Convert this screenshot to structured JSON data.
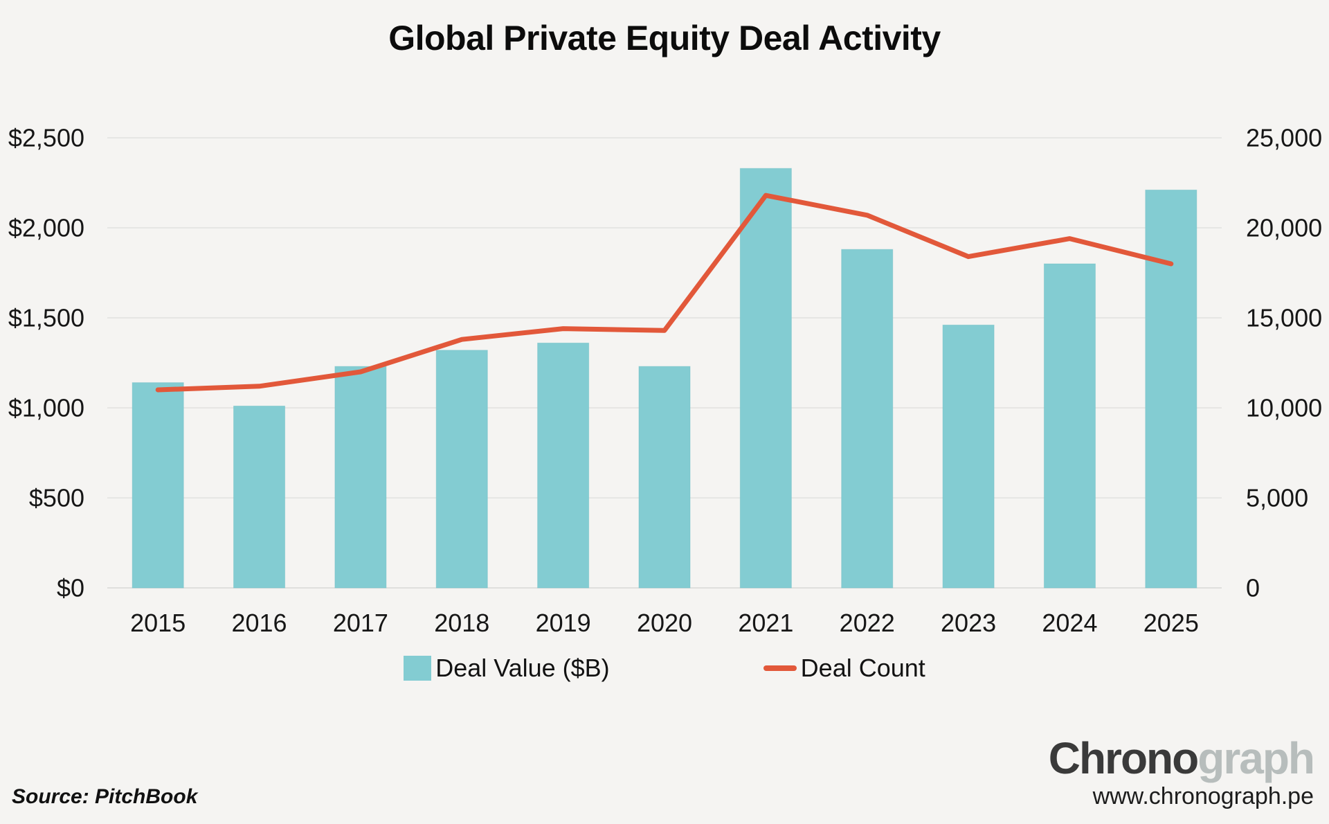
{
  "title": "Global Private Equity Deal Activity",
  "source_note": "Source: PitchBook",
  "logo": {
    "wordmark_dark": "Chrono",
    "wordmark_light": "graph",
    "url": "www.chronograph.pe"
  },
  "legend": [
    {
      "label": "Deal Value ($B)",
      "swatch": "bar",
      "color": "#83ccd2"
    },
    {
      "label": "Deal Count",
      "swatch": "line",
      "color": "#e2583a"
    }
  ],
  "colors": {
    "background": "#f5f4f2",
    "bar_fill": "#83ccd2",
    "bar_edge": "#6dbcc3",
    "line_stroke": "#e2583a",
    "gridline": "#e2e2e0",
    "baseline": "#d8d8d6",
    "text": "#161616"
  },
  "chart_data": {
    "type": "combo",
    "title": "Global Private Equity Deal Activity",
    "categories": [
      "2015",
      "2016",
      "2017",
      "2018",
      "2019",
      "2020",
      "2021",
      "2022",
      "2023",
      "2024",
      "2025"
    ],
    "series": [
      {
        "name": "Deal Value ($B)",
        "type": "bar",
        "axis": "left",
        "color": "#83ccd2",
        "values": [
          1140,
          1010,
          1230,
          1320,
          1360,
          1230,
          2330,
          1880,
          1460,
          1800,
          2210
        ]
      },
      {
        "name": "Deal Count",
        "type": "line",
        "axis": "right",
        "color": "#e2583a",
        "values": [
          11000,
          11200,
          12000,
          13800,
          14400,
          14300,
          21800,
          20700,
          18400,
          19400,
          18000
        ]
      }
    ],
    "left_axis": {
      "ticks": [
        "$0",
        "$500",
        "$1,000",
        "$1,500",
        "$2,000",
        "$2,500"
      ],
      "range": [
        0,
        2500
      ]
    },
    "right_axis": {
      "ticks": [
        "0",
        "5,000",
        "10,000",
        "15,000",
        "20,000",
        "25,000"
      ],
      "range": [
        0,
        25000
      ]
    },
    "grid": true,
    "legend_position": "bottom"
  }
}
